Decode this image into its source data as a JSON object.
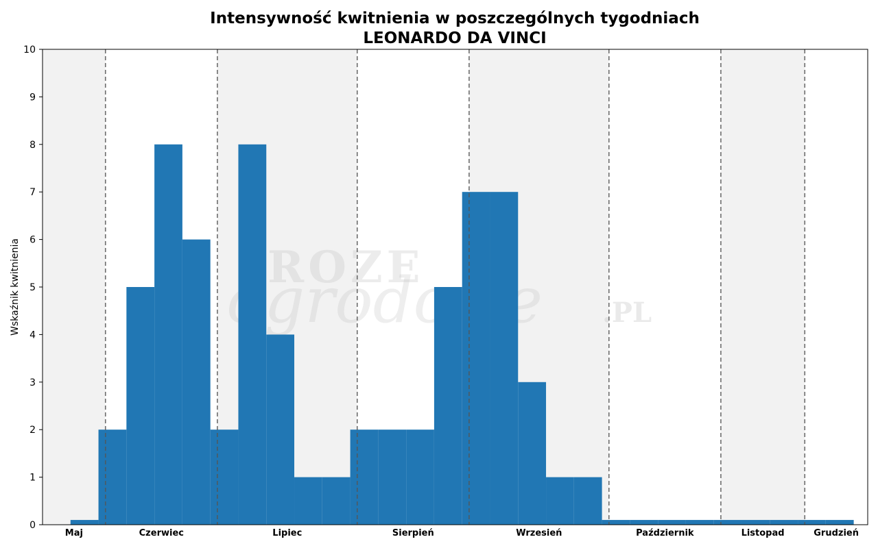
{
  "chart_data": {
    "type": "bar",
    "title": "Intensywność kwitnienia w poszczególnych tygodniach",
    "subtitle": "LEONARDO DA VINCI",
    "ylabel": "Wskaźnik kwitnienia",
    "xlabel": "",
    "ylim": [
      0,
      10
    ],
    "xlim": [
      0,
      29.5
    ],
    "yticks": [
      "0",
      "1",
      "2",
      "3",
      "4",
      "5",
      "6",
      "7",
      "8",
      "9",
      "10"
    ],
    "grid": false,
    "bar_color": "#2177b4",
    "band_color": "#f2f2f2",
    "divider_color": "#555555",
    "watermark": [
      "ROZE",
      "ogrodowe",
      ".PL"
    ],
    "months": [
      {
        "name": "Maj",
        "start": 0,
        "end": 2.25
      },
      {
        "name": "Czerwiec",
        "start": 2.25,
        "end": 6.25
      },
      {
        "name": "Lipiec",
        "start": 6.25,
        "end": 11.25
      },
      {
        "name": "Sierpień",
        "start": 11.25,
        "end": 15.25
      },
      {
        "name": "Wrzesień",
        "start": 15.25,
        "end": 20.25
      },
      {
        "name": "Październik",
        "start": 20.25,
        "end": 24.25
      },
      {
        "name": "Listopad",
        "start": 24.25,
        "end": 27.25
      },
      {
        "name": "Grudzień",
        "start": 27.25,
        "end": 29.5
      }
    ],
    "weeks": [
      1,
      2,
      3,
      4,
      5,
      6,
      7,
      8,
      9,
      10,
      11,
      12,
      13,
      14,
      15,
      16,
      17,
      18,
      19,
      20,
      21,
      22,
      23,
      24,
      25,
      26,
      27,
      28
    ],
    "values": [
      0.1,
      2,
      5,
      8,
      6,
      2,
      8,
      4,
      1,
      1,
      2,
      2,
      2,
      5,
      7,
      7,
      3,
      1,
      1,
      0.1,
      0.1,
      0.1,
      0.1,
      0.1,
      0.1,
      0.1,
      0.1,
      0.1
    ]
  }
}
